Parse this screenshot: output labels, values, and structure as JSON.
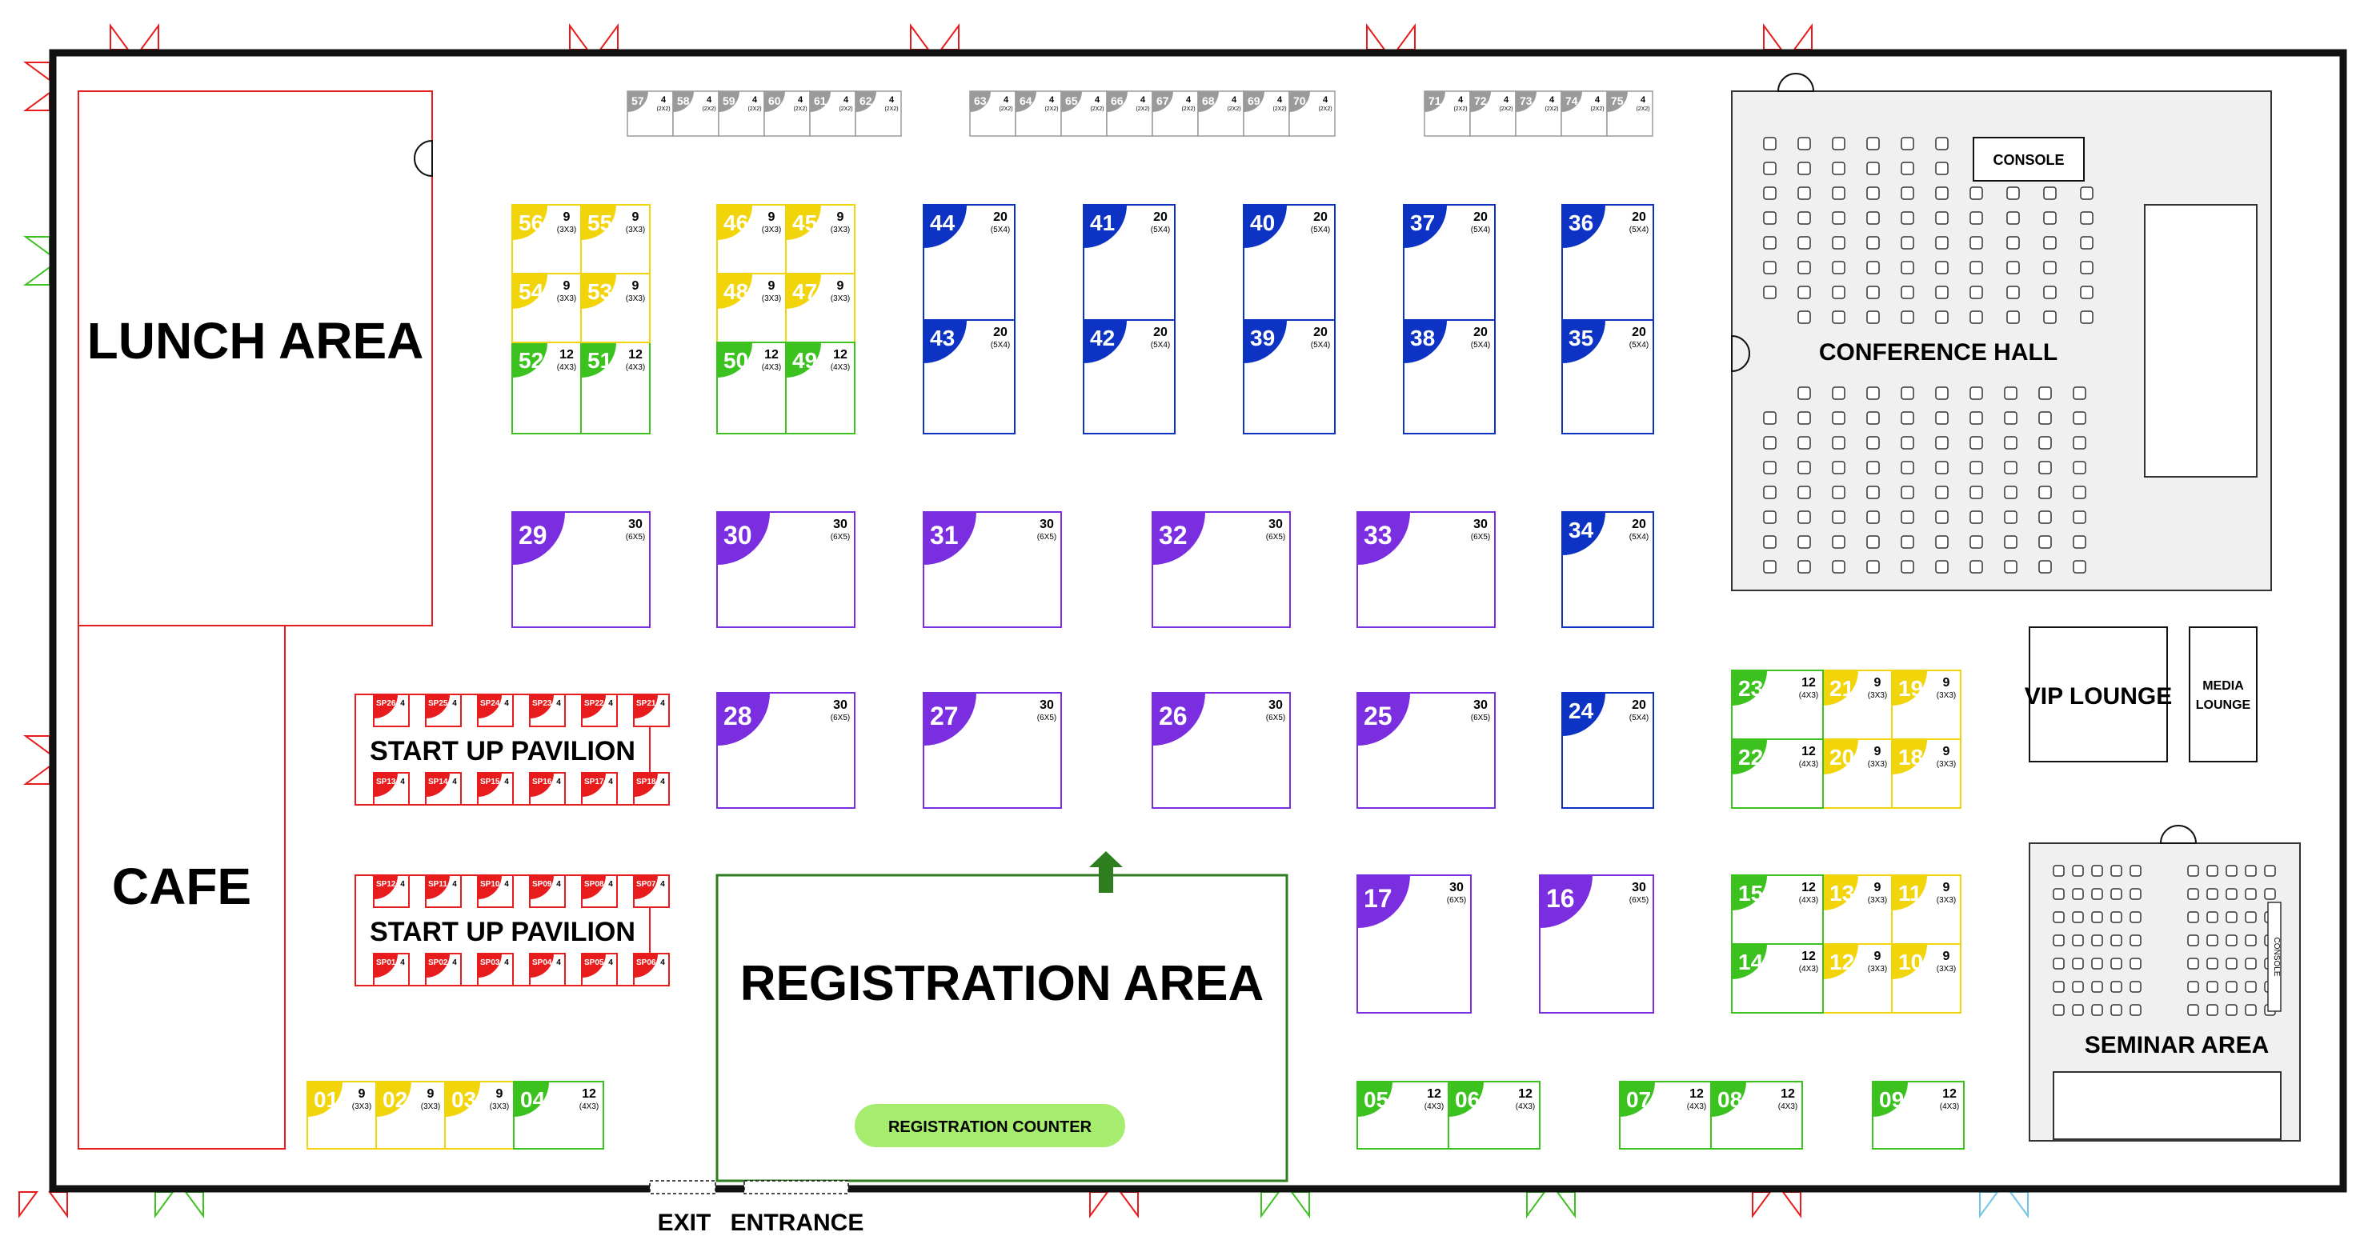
{
  "floor_plan": {
    "zones": {
      "lunch_area": "LUNCH AREA",
      "cafe": "CAFE",
      "registration_area": "REGISTRATION AREA",
      "registration_counter": "REGISTRATION COUNTER",
      "conference_hall": "CONFERENCE HALL",
      "console": "CONSOLE",
      "vip_lounge": "VIP LOUNGE",
      "media_lounge_line1": "MEDIA",
      "media_lounge_line2": "LOUNGE",
      "seminar_area": "SEMINAR AREA",
      "seminar_console": "CONSOLE",
      "startup_pavilion_1": "START UP PAVILION",
      "startup_pavilion_2": "START UP PAVILION",
      "exit": "EXIT",
      "entrance": "ENTRANCE"
    },
    "colors": {
      "yellow": "#f2d40a",
      "green": "#3cc21e",
      "blue": "#0c33c4",
      "purple": "#7a2ee0",
      "red": "#e81c1c",
      "grey": "#9a9a9a",
      "reg_green": "#2e7d1e",
      "counter_green": "#a6ec6e",
      "wall": "#111111"
    },
    "booth_types": {
      "yellow": {
        "area": "9",
        "size": "(3X3)"
      },
      "green": {
        "area": "12",
        "size": "(4X3)"
      },
      "blue": {
        "area": "20",
        "size": "(5X4)"
      },
      "purple": {
        "area": "30",
        "size": "(6X5)"
      },
      "grey": {
        "area": "4",
        "size": "(2X2)"
      },
      "red": {
        "area": "4",
        "size": "(2X2)"
      }
    },
    "booths": [
      {
        "id": "01",
        "type": "yellow"
      },
      {
        "id": "02",
        "type": "yellow"
      },
      {
        "id": "03",
        "type": "yellow"
      },
      {
        "id": "04",
        "type": "green"
      },
      {
        "id": "05",
        "type": "green"
      },
      {
        "id": "06",
        "type": "green"
      },
      {
        "id": "07",
        "type": "green"
      },
      {
        "id": "08",
        "type": "green"
      },
      {
        "id": "09",
        "type": "green"
      },
      {
        "id": "10",
        "type": "yellow"
      },
      {
        "id": "11",
        "type": "yellow"
      },
      {
        "id": "12",
        "type": "yellow"
      },
      {
        "id": "13",
        "type": "yellow"
      },
      {
        "id": "14",
        "type": "green"
      },
      {
        "id": "15",
        "type": "green"
      },
      {
        "id": "16",
        "type": "purple"
      },
      {
        "id": "17",
        "type": "purple"
      },
      {
        "id": "18",
        "type": "yellow"
      },
      {
        "id": "19",
        "type": "yellow"
      },
      {
        "id": "20",
        "type": "yellow"
      },
      {
        "id": "21",
        "type": "yellow"
      },
      {
        "id": "22",
        "type": "green"
      },
      {
        "id": "23",
        "type": "green"
      },
      {
        "id": "24",
        "type": "blue"
      },
      {
        "id": "25",
        "type": "purple"
      },
      {
        "id": "26",
        "type": "purple"
      },
      {
        "id": "27",
        "type": "purple"
      },
      {
        "id": "28",
        "type": "purple"
      },
      {
        "id": "29",
        "type": "purple"
      },
      {
        "id": "30",
        "type": "purple"
      },
      {
        "id": "31",
        "type": "purple"
      },
      {
        "id": "32",
        "type": "purple"
      },
      {
        "id": "33",
        "type": "purple"
      },
      {
        "id": "34",
        "type": "blue"
      },
      {
        "id": "35",
        "type": "blue"
      },
      {
        "id": "36",
        "type": "blue"
      },
      {
        "id": "37",
        "type": "blue"
      },
      {
        "id": "38",
        "type": "blue"
      },
      {
        "id": "39",
        "type": "blue"
      },
      {
        "id": "40",
        "type": "blue"
      },
      {
        "id": "41",
        "type": "blue"
      },
      {
        "id": "42",
        "type": "blue"
      },
      {
        "id": "43",
        "type": "blue"
      },
      {
        "id": "44",
        "type": "blue"
      },
      {
        "id": "45",
        "type": "yellow"
      },
      {
        "id": "46",
        "type": "yellow"
      },
      {
        "id": "47",
        "type": "yellow"
      },
      {
        "id": "48",
        "type": "yellow"
      },
      {
        "id": "49",
        "type": "green"
      },
      {
        "id": "50",
        "type": "green"
      },
      {
        "id": "51",
        "type": "green"
      },
      {
        "id": "52",
        "type": "green"
      },
      {
        "id": "53",
        "type": "yellow"
      },
      {
        "id": "54",
        "type": "yellow"
      },
      {
        "id": "55",
        "type": "yellow"
      },
      {
        "id": "56",
        "type": "yellow"
      },
      {
        "id": "57",
        "type": "grey"
      },
      {
        "id": "58",
        "type": "grey"
      },
      {
        "id": "59",
        "type": "grey"
      },
      {
        "id": "60",
        "type": "grey"
      },
      {
        "id": "61",
        "type": "grey"
      },
      {
        "id": "62",
        "type": "grey"
      },
      {
        "id": "63",
        "type": "grey"
      },
      {
        "id": "64",
        "type": "grey"
      },
      {
        "id": "65",
        "type": "grey"
      },
      {
        "id": "66",
        "type": "grey"
      },
      {
        "id": "67",
        "type": "grey"
      },
      {
        "id": "68",
        "type": "grey"
      },
      {
        "id": "69",
        "type": "grey"
      },
      {
        "id": "70",
        "type": "grey"
      },
      {
        "id": "71",
        "type": "grey"
      },
      {
        "id": "72",
        "type": "grey"
      },
      {
        "id": "73",
        "type": "grey"
      },
      {
        "id": "74",
        "type": "grey"
      },
      {
        "id": "75",
        "type": "grey"
      }
    ],
    "startup_row1_top": [
      "SP26",
      "SP25",
      "SP24",
      "SP23",
      "SP22",
      "SP21"
    ],
    "startup_row1_bottom": [
      "SP13",
      "SP14",
      "SP15",
      "SP16",
      "SP17",
      "SP18"
    ],
    "startup_row2_top": [
      "SP12",
      "SP11",
      "SP10",
      "SP09",
      "SP08",
      "SP07"
    ],
    "startup_row2_bottom": [
      "SP01",
      "SP02",
      "SP03",
      "SP04",
      "SP05",
      "SP06"
    ],
    "icons": [
      "door-swing-icon",
      "entrance-arrow-icon",
      "chair-icon",
      "door-gap-icon"
    ]
  }
}
